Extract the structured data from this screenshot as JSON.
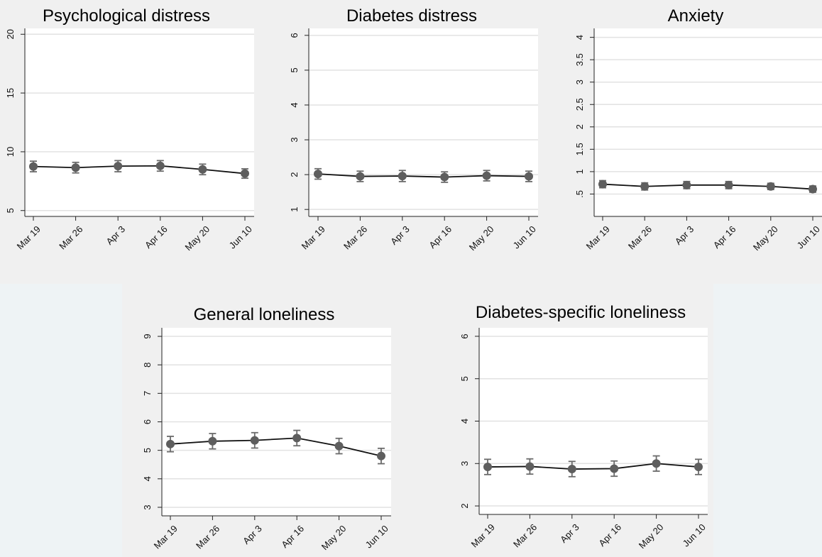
{
  "chart_data": [
    {
      "type": "line",
      "title": "Psychological distress",
      "categories": [
        "Mar 19",
        "Mar 26",
        "Apr 3",
        "Apr 16",
        "May 20",
        "Jun 10"
      ],
      "values": [
        8.75,
        8.65,
        8.78,
        8.8,
        8.5,
        8.15
      ],
      "ci_low": [
        8.3,
        8.2,
        8.3,
        8.35,
        8.05,
        7.75
      ],
      "ci_high": [
        9.2,
        9.1,
        9.25,
        9.25,
        8.95,
        8.55
      ],
      "yticks": [
        5,
        10,
        15,
        20
      ],
      "ytick_labels": [
        "5",
        "10",
        "15",
        "20"
      ],
      "ylim": [
        4.5,
        20.5
      ],
      "grid": true
    },
    {
      "type": "line",
      "title": "Diabetes distress",
      "categories": [
        "Mar 19",
        "Mar 26",
        "Apr 3",
        "Apr 16",
        "May 20",
        "Jun 10"
      ],
      "values": [
        2.02,
        1.95,
        1.96,
        1.93,
        1.97,
        1.95
      ],
      "ci_low": [
        1.87,
        1.8,
        1.8,
        1.78,
        1.82,
        1.8
      ],
      "ci_high": [
        2.17,
        2.1,
        2.12,
        2.08,
        2.12,
        2.1
      ],
      "yticks": [
        1,
        2,
        3,
        4,
        5,
        6
      ],
      "ytick_labels": [
        "1",
        "2",
        "3",
        "4",
        "5",
        "6"
      ],
      "ylim": [
        0.8,
        6.2
      ],
      "grid": true
    },
    {
      "type": "line",
      "title": "Anxiety",
      "categories": [
        "Mar 19",
        "Mar 26",
        "Apr 3",
        "Apr 16",
        "May 20",
        "Jun 10"
      ],
      "values": [
        0.72,
        0.67,
        0.7,
        0.7,
        0.67,
        0.61
      ],
      "ci_low": [
        0.64,
        0.59,
        0.62,
        0.62,
        0.6,
        0.54
      ],
      "ci_high": [
        0.8,
        0.75,
        0.78,
        0.78,
        0.74,
        0.68
      ],
      "yticks": [
        0.5,
        1,
        1.5,
        2,
        2.5,
        3,
        3.5,
        4
      ],
      "ytick_labels": [
        ".5",
        "1",
        "1.5",
        "2",
        "2.5",
        "3",
        "3.5",
        "4"
      ],
      "ylim": [
        0,
        4.2
      ],
      "grid": true
    },
    {
      "type": "line",
      "title": "General loneliness",
      "categories": [
        "Mar 19",
        "Mar 26",
        "Apr 3",
        "Apr 16",
        "May 20",
        "Jun 10"
      ],
      "values": [
        5.22,
        5.32,
        5.35,
        5.43,
        5.15,
        4.8
      ],
      "ci_low": [
        4.95,
        5.05,
        5.08,
        5.16,
        4.88,
        4.53
      ],
      "ci_high": [
        5.49,
        5.59,
        5.62,
        5.7,
        5.42,
        5.07
      ],
      "yticks": [
        3,
        4,
        5,
        6,
        7,
        8,
        9
      ],
      "ytick_labels": [
        "3",
        "4",
        "5",
        "6",
        "7",
        "8",
        "9"
      ],
      "ylim": [
        2.7,
        9.3
      ],
      "grid": true
    },
    {
      "type": "line",
      "title": "Diabetes-specific loneliness",
      "categories": [
        "Mar 19",
        "Mar 26",
        "Apr 3",
        "Apr 16",
        "May 20",
        "Jun 10"
      ],
      "values": [
        2.92,
        2.93,
        2.87,
        2.88,
        3.0,
        2.92
      ],
      "ci_low": [
        2.74,
        2.75,
        2.69,
        2.7,
        2.82,
        2.74
      ],
      "ci_high": [
        3.1,
        3.11,
        3.05,
        3.06,
        3.18,
        3.1
      ],
      "yticks": [
        2,
        3,
        4,
        5,
        6
      ],
      "ytick_labels": [
        "2",
        "3",
        "4",
        "5",
        "6"
      ],
      "ylim": [
        1.8,
        6.2
      ],
      "grid": true
    }
  ]
}
